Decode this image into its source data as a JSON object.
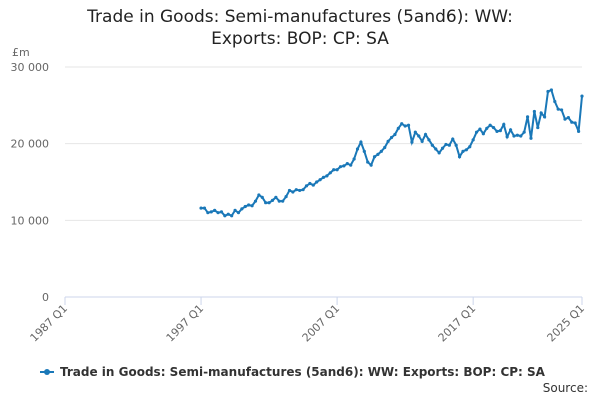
{
  "chart_data": {
    "type": "line",
    "title": "Trade in Goods: Semi-manufactures (5and6): WW: Exports: BOP: CP: SA",
    "y_label": "£m",
    "source": "Source:",
    "xlim": [
      "1987 Q1",
      "2025 Q1"
    ],
    "xticks": [
      "1987 Q1",
      "1997 Q1",
      "2007 Q1",
      "2017 Q1",
      "2025 Q1"
    ],
    "ylim": [
      0,
      30000
    ],
    "yticks": [
      0,
      {
        "value": 10000,
        "label": "10 000"
      },
      {
        "value": 20000,
        "label": "20 000"
      },
      {
        "value": 30000,
        "label": "30 000"
      }
    ],
    "grid": true,
    "x": [
      "1997 Q1",
      "1997 Q2",
      "1997 Q3",
      "1997 Q4",
      "1998 Q1",
      "1998 Q2",
      "1998 Q3",
      "1998 Q4",
      "1999 Q1",
      "1999 Q2",
      "1999 Q3",
      "1999 Q4",
      "2000 Q1",
      "2000 Q2",
      "2000 Q3",
      "2000 Q4",
      "2001 Q1",
      "2001 Q2",
      "2001 Q3",
      "2001 Q4",
      "2002 Q1",
      "2002 Q2",
      "2002 Q3",
      "2002 Q4",
      "2003 Q1",
      "2003 Q2",
      "2003 Q3",
      "2003 Q4",
      "2004 Q1",
      "2004 Q2",
      "2004 Q3",
      "2004 Q4",
      "2005 Q1",
      "2005 Q2",
      "2005 Q3",
      "2005 Q4",
      "2006 Q1",
      "2006 Q2",
      "2006 Q3",
      "2006 Q4",
      "2007 Q1",
      "2007 Q2",
      "2007 Q3",
      "2007 Q4",
      "2008 Q1",
      "2008 Q2",
      "2008 Q3",
      "2008 Q4",
      "2009 Q1",
      "2009 Q2",
      "2009 Q3",
      "2009 Q4",
      "2010 Q1",
      "2010 Q2",
      "2010 Q3",
      "2010 Q4",
      "2011 Q1",
      "2011 Q2",
      "2011 Q3",
      "2011 Q4",
      "2012 Q1",
      "2012 Q2",
      "2012 Q3",
      "2012 Q4",
      "2013 Q1",
      "2013 Q2",
      "2013 Q3",
      "2013 Q4",
      "2014 Q1",
      "2014 Q2",
      "2014 Q3",
      "2014 Q4",
      "2015 Q1",
      "2015 Q2",
      "2015 Q3",
      "2015 Q4",
      "2016 Q1",
      "2016 Q2",
      "2016 Q3",
      "2016 Q4",
      "2017 Q1",
      "2017 Q2",
      "2017 Q3",
      "2017 Q4",
      "2018 Q1",
      "2018 Q2",
      "2018 Q3",
      "2018 Q4",
      "2019 Q1",
      "2019 Q2",
      "2019 Q3",
      "2019 Q4",
      "2020 Q1",
      "2020 Q2",
      "2020 Q3",
      "2020 Q4",
      "2021 Q1",
      "2021 Q2",
      "2021 Q3",
      "2021 Q4",
      "2022 Q1",
      "2022 Q2",
      "2022 Q3",
      "2022 Q4",
      "2023 Q1",
      "2023 Q2",
      "2023 Q3",
      "2023 Q4",
      "2024 Q1",
      "2024 Q2",
      "2024 Q3",
      "2024 Q4",
      "2025 Q1"
    ],
    "series": [
      {
        "name": "Trade in Goods: Semi-manufactures (5and6): WW: Exports: BOP: CP: SA",
        "color": "#1a78b8",
        "values": [
          11600,
          11600,
          11000,
          11100,
          11300,
          11000,
          11100,
          10600,
          10800,
          10600,
          11300,
          11000,
          11500,
          11800,
          12000,
          11900,
          12500,
          13300,
          13000,
          12300,
          12300,
          12600,
          13000,
          12500,
          12500,
          13100,
          13900,
          13700,
          14000,
          13900,
          14000,
          14500,
          14800,
          14600,
          15000,
          15300,
          15600,
          15800,
          16200,
          16600,
          16600,
          17000,
          17100,
          17400,
          17200,
          18000,
          19300,
          20200,
          19000,
          17600,
          17200,
          18300,
          18600,
          19000,
          19500,
          20300,
          20800,
          21200,
          22000,
          22600,
          22300,
          22400,
          20200,
          21500,
          21000,
          20300,
          21200,
          20500,
          19800,
          19300,
          18800,
          19400,
          19900,
          19800,
          20600,
          19800,
          18300,
          19000,
          19200,
          19600,
          20500,
          21500,
          21900,
          21300,
          22000,
          22400,
          22100,
          21600,
          21700,
          22500,
          20900,
          21800,
          21000,
          21100,
          21000,
          21500,
          23500,
          20700,
          24200,
          22100,
          24000,
          23500,
          26800,
          27000,
          25500,
          24500,
          24400,
          23200,
          23400,
          22800,
          22700,
          21600,
          26200
        ]
      }
    ]
  }
}
